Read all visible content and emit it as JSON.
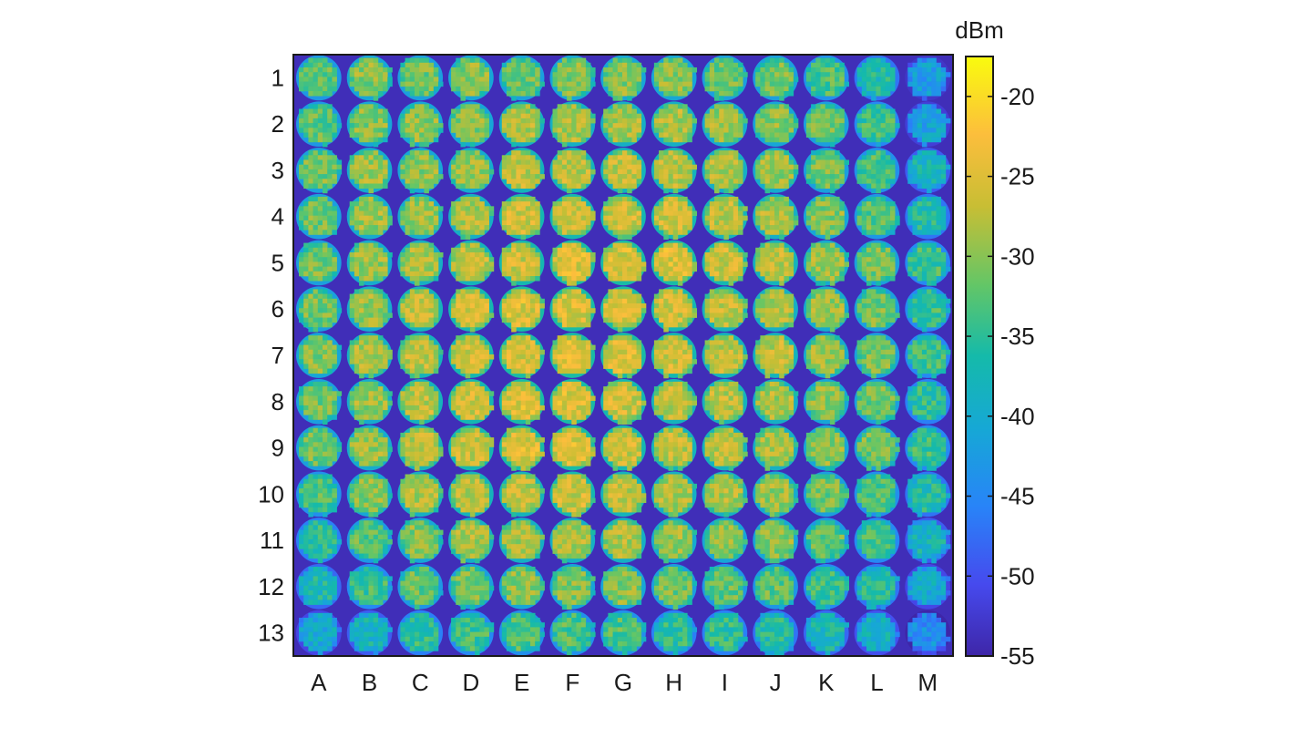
{
  "chart_data": {
    "type": "heatmap",
    "title": "",
    "xlabel": "",
    "ylabel": "",
    "x_categories": [
      "A",
      "B",
      "C",
      "D",
      "E",
      "F",
      "G",
      "H",
      "I",
      "J",
      "K",
      "L",
      "M"
    ],
    "y_categories": [
      "1",
      "2",
      "3",
      "4",
      "5",
      "6",
      "7",
      "8",
      "9",
      "10",
      "11",
      "12",
      "13"
    ],
    "colorbar": {
      "label": "dBm",
      "range": [
        -55,
        -17.5
      ],
      "ticks": [
        -20,
        -25,
        -30,
        -35,
        -40,
        -45,
        -50,
        -55
      ],
      "tick_labels": [
        "-20",
        "-25",
        "-30",
        "-35",
        "-40",
        "-45",
        "-50",
        "-55"
      ],
      "colormap": "parula"
    },
    "background_value": -54,
    "colors": {
      "background": "#3e26a8",
      "high": "#f9fb0e"
    },
    "cell_values": [
      [
        -32,
        -30,
        -31,
        -30,
        -31,
        -30,
        -30,
        -30,
        -31,
        -31,
        -33,
        -36,
        -42
      ],
      [
        -32,
        -30,
        -30,
        -30,
        -28,
        -28,
        -28,
        -28,
        -29,
        -30,
        -31,
        -34,
        -41
      ],
      [
        -31,
        -29,
        -30,
        -29,
        -27,
        -27,
        -27,
        -27,
        -28,
        -29,
        -31,
        -33,
        -38
      ],
      [
        -31,
        -29,
        -29,
        -28,
        -26,
        -26,
        -26,
        -26,
        -27,
        -28,
        -30,
        -32,
        -36
      ],
      [
        -31,
        -29,
        -28,
        -27,
        -26,
        -25,
        -25,
        -25,
        -26,
        -27,
        -29,
        -31,
        -34
      ],
      [
        -31,
        -29,
        -27,
        -26,
        -25,
        -25,
        -25,
        -26,
        -27,
        -28,
        -29,
        -31,
        -34
      ],
      [
        -30,
        -28,
        -27,
        -26,
        -25,
        -25,
        -25,
        -26,
        -27,
        -27,
        -29,
        -31,
        -34
      ],
      [
        -31,
        -29,
        -27,
        -26,
        -25,
        -25,
        -26,
        -27,
        -27,
        -28,
        -30,
        -31,
        -35
      ],
      [
        -31,
        -29,
        -27,
        -26,
        -25,
        -25,
        -26,
        -27,
        -27,
        -28,
        -30,
        -31,
        -34
      ],
      [
        -33,
        -30,
        -28,
        -27,
        -27,
        -26,
        -27,
        -28,
        -28,
        -29,
        -31,
        -33,
        -36
      ],
      [
        -35,
        -32,
        -30,
        -28,
        -28,
        -28,
        -28,
        -29,
        -30,
        -30,
        -32,
        -34,
        -38
      ],
      [
        -37,
        -34,
        -32,
        -31,
        -30,
        -30,
        -30,
        -31,
        -32,
        -32,
        -34,
        -36,
        -40
      ],
      [
        -40,
        -38,
        -35,
        -34,
        -33,
        -33,
        -33,
        -35,
        -35,
        -36,
        -37,
        -39,
        -44
      ]
    ]
  }
}
